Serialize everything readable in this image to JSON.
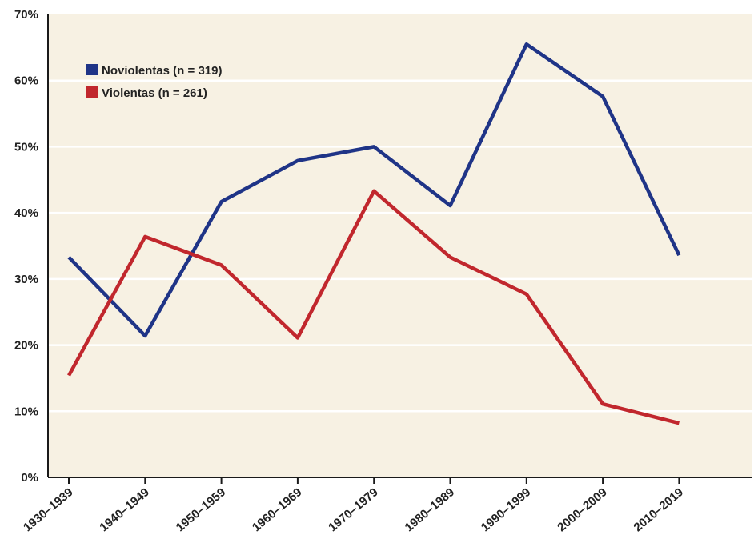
{
  "chart_data": {
    "type": "line",
    "title": "",
    "xlabel": "",
    "ylabel": "",
    "categories": [
      "1930–1939",
      "1940–1949",
      "1950–1959",
      "1960–1969",
      "1970–1979",
      "1980–1989",
      "1990–1999",
      "2000–2009",
      "2010–2019"
    ],
    "ylim": [
      0,
      70
    ],
    "yticks": [
      0,
      10,
      20,
      30,
      40,
      50,
      60,
      70
    ],
    "ytick_labels": [
      "0%",
      "10%",
      "20%",
      "30%",
      "40%",
      "50%",
      "60%",
      "70%"
    ],
    "grid": true,
    "legend_position": "top-left",
    "series": [
      {
        "name": "Noviolentas (n = 319)",
        "color": "#1f3487",
        "values": [
          33.3,
          21.4,
          41.7,
          47.9,
          50.0,
          41.1,
          65.5,
          57.6,
          33.6
        ]
      },
      {
        "name": "Violentas (n = 261)",
        "color": "#c1272d",
        "values": [
          15.4,
          36.4,
          32.1,
          21.1,
          43.3,
          33.3,
          27.7,
          11.1,
          8.2
        ]
      }
    ]
  }
}
